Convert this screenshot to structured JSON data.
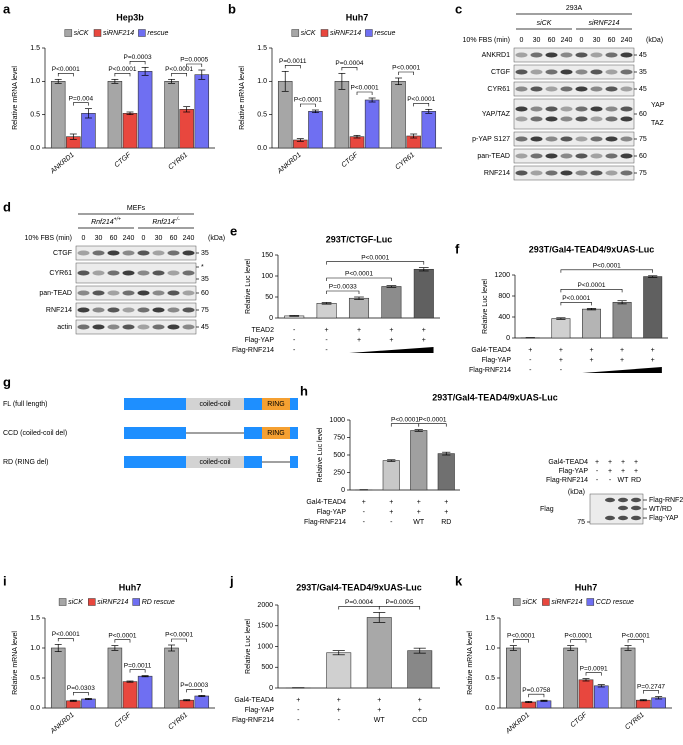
{
  "chart_data": [
    {
      "type": "grouped_bar",
      "panel": "a",
      "title": "Hep3b",
      "y_label": "Relative mRNA level",
      "categories": [
        "ANKRD1",
        "CTGF",
        "CYR61"
      ],
      "series": [
        {
          "name": "siCK",
          "color": "#a6a6a6",
          "values": [
            1,
            1,
            1
          ],
          "errors": [
            0.03,
            0.03,
            0.03
          ]
        },
        {
          "name": "siRNF214",
          "color": "#e8473e",
          "values": [
            0.17,
            0.52,
            0.58
          ],
          "errors": [
            0.04,
            0.02,
            0.04
          ]
        },
        {
          "name": "rescue",
          "color": "#6f6ff2",
          "values": [
            0.52,
            1.15,
            1.1
          ],
          "errors": [
            0.07,
            0.06,
            0.07
          ]
        }
      ],
      "ylim": [
        0,
        1.5
      ],
      "yticks": [
        {
          "value": 0,
          "label": "0.0"
        },
        0.5,
        {
          "value": 1,
          "label": "1.0"
        },
        1.5
      ],
      "annotations": [
        {
          "label": "P=0.004",
          "category": 0,
          "pair": [
            1,
            2
          ]
        },
        {
          "label": "P<0.0001",
          "category": 0,
          "pair": [
            0,
            1
          ]
        },
        {
          "label": "P<0.0001",
          "category": 1,
          "pair": [
            0,
            1
          ]
        },
        {
          "label": "P=0.0003",
          "category": 1,
          "pair": [
            1,
            2
          ]
        },
        {
          "label": "P<0.0001",
          "category": 2,
          "pair": [
            0,
            1
          ]
        },
        {
          "label": "P=0.0005",
          "category": 2,
          "pair": [
            1,
            2
          ]
        }
      ]
    },
    {
      "type": "grouped_bar",
      "panel": "b",
      "title": "Huh7",
      "y_label": "Relative mRNA level",
      "categories": [
        "ANKRD1",
        "CTGF",
        "CYR61"
      ],
      "series": [
        {
          "name": "siCK",
          "color": "#a6a6a6",
          "values": [
            1,
            1,
            1
          ],
          "errors": [
            0.15,
            0.12,
            0.05
          ]
        },
        {
          "name": "siRNF214",
          "color": "#e8473e",
          "values": [
            0.12,
            0.17,
            0.18
          ],
          "errors": [
            0.02,
            0.02,
            0.03
          ]
        },
        {
          "name": "rescue",
          "color": "#6f6ff2",
          "values": [
            0.55,
            0.72,
            0.55
          ],
          "errors": [
            0.02,
            0.03,
            0.03
          ]
        }
      ],
      "ylim": [
        0,
        1.5
      ],
      "yticks": [
        {
          "value": 0,
          "label": "0.0"
        },
        0.5,
        {
          "value": 1,
          "label": "1.0"
        },
        1.5
      ],
      "annotations": [
        {
          "label": "P<0.0001",
          "category": 0,
          "pair": [
            1,
            2
          ]
        },
        {
          "label": "P=0.0011",
          "category": 0,
          "pair": [
            0,
            1
          ]
        },
        {
          "label": "P<0.0001",
          "category": 1,
          "pair": [
            1,
            2
          ]
        },
        {
          "label": "P=0.0004",
          "category": 1,
          "pair": [
            0,
            1
          ]
        },
        {
          "label": "P<0.0001",
          "category": 2,
          "pair": [
            1,
            2
          ]
        },
        {
          "label": "P<0.0001",
          "category": 2,
          "pair": [
            0,
            1
          ]
        }
      ]
    },
    {
      "type": "bar",
      "panel": "e",
      "title": "293T/CTGF-Luc",
      "y_label": "Relative Luc level",
      "values": [
        5,
        35,
        47,
        75,
        116
      ],
      "errors": [
        1,
        2,
        3,
        2,
        4
      ],
      "colors": [
        "#e6e6e6",
        "#d0d0d0",
        "#b4b4b4",
        "#8c8c8c",
        "#606060"
      ],
      "ylim": [
        0,
        150
      ],
      "yticks": [
        0,
        50,
        100,
        150
      ],
      "treatments": [
        {
          "label": "TEAD2",
          "marks": [
            "-",
            "+",
            "+",
            "+",
            "+"
          ]
        },
        {
          "label": "Flag-YAP",
          "marks": [
            "-",
            "-",
            "+",
            "+",
            "+"
          ]
        },
        {
          "label": "Flag-RNF214",
          "marks": [
            "-",
            "-",
            null,
            null,
            null
          ]
        }
      ],
      "annotations": [
        {
          "label": "P=0.0033",
          "pair": [
            1,
            2
          ]
        },
        {
          "label": "P<0.0001",
          "pair": [
            1,
            3
          ]
        },
        {
          "label": "P<0.0001",
          "pair": [
            1,
            4
          ]
        }
      ]
    },
    {
      "type": "bar",
      "panel": "f",
      "title": "293T/Gal4-TEAD4/9xUAS-Luc",
      "y_label": "Relative Luc level",
      "values": [
        5,
        370,
        550,
        680,
        1170
      ],
      "errors": [
        3,
        15,
        15,
        30,
        15
      ],
      "colors": [
        "#e6e6e6",
        "#d0d0d0",
        "#b4b4b4",
        "#8c8c8c",
        "#606060"
      ],
      "ylim": [
        0,
        1200
      ],
      "yticks": [
        0,
        400,
        800,
        1200
      ],
      "treatments": [
        {
          "label": "Gal4-TEAD4",
          "marks": [
            "+",
            "+",
            "+",
            "+",
            "+"
          ]
        },
        {
          "label": "Flag-YAP",
          "marks": [
            "-",
            "+",
            "+",
            "+",
            "+"
          ]
        },
        {
          "label": "Flag-RNF214",
          "marks": [
            "-",
            "-",
            null,
            null,
            null
          ]
        }
      ],
      "annotations": [
        {
          "label": "P<0.0001",
          "pair": [
            1,
            2
          ]
        },
        {
          "label": "P<0.0001",
          "pair": [
            1,
            3
          ]
        },
        {
          "label": "P<0.0001",
          "pair": [
            1,
            4
          ]
        }
      ]
    },
    {
      "type": "bar",
      "panel": "h",
      "title": "293T/Gal4-TEAD4/9xUAS-Luc",
      "y_label": "Relative Luc level",
      "values": [
        3,
        420,
        850,
        520
      ],
      "errors": [
        2,
        12,
        12,
        20
      ],
      "colors": [
        "#ffffff",
        "#c8c8c8",
        "#a0a0a0",
        "#707070"
      ],
      "ylim": [
        0,
        1000
      ],
      "yticks": [
        0,
        250,
        500,
        750,
        1000
      ],
      "treatments": [
        {
          "label": "Gal4-TEAD4",
          "marks": [
            "+",
            "+",
            "+",
            "+"
          ]
        },
        {
          "label": "Flag-YAP",
          "marks": [
            "-",
            "+",
            "+",
            "+"
          ]
        },
        {
          "label": "Flag-RNF214",
          "marks": [
            "-",
            "-",
            "WT",
            "RD"
          ]
        }
      ],
      "annotations": [
        {
          "label": "P<0.0001",
          "pair": [
            1,
            2
          ]
        },
        {
          "label": "P<0.0001",
          "pair": [
            2,
            3
          ]
        }
      ]
    },
    {
      "type": "grouped_bar",
      "panel": "i",
      "title": "Huh7",
      "y_label": "Relative mRNA level",
      "categories": [
        "ANKRD1",
        "CTGF",
        "CYR61"
      ],
      "series": [
        {
          "name": "siCK",
          "color": "#a6a6a6",
          "values": [
            1,
            1,
            1
          ],
          "errors": [
            0.06,
            0.04,
            0.05
          ]
        },
        {
          "name": "siRNF214",
          "color": "#e8473e",
          "values": [
            0.12,
            0.44,
            0.13
          ],
          "errors": [
            0.01,
            0.01,
            0.01
          ]
        },
        {
          "name": "RD rescue",
          "color": "#6f6ff2",
          "values": [
            0.15,
            0.53,
            0.2
          ],
          "errors": [
            0.01,
            0.01,
            0.01
          ]
        }
      ],
      "ylim": [
        0,
        1.5
      ],
      "yticks": [
        {
          "value": 0,
          "label": "0.0"
        },
        0.5,
        {
          "value": 1,
          "label": "1.0"
        },
        1.5
      ],
      "annotations": [
        {
          "label": "P=0.0303",
          "category": 0,
          "pair": [
            1,
            2
          ]
        },
        {
          "label": "P<0.0001",
          "category": 0,
          "pair": [
            0,
            1
          ]
        },
        {
          "label": "P=0.0011",
          "category": 1,
          "pair": [
            1,
            2
          ]
        },
        {
          "label": "P<0.0001",
          "category": 1,
          "pair": [
            0,
            1
          ]
        },
        {
          "label": "P=0.0003",
          "category": 2,
          "pair": [
            1,
            2
          ]
        },
        {
          "label": "P<0.0001",
          "category": 2,
          "pair": [
            0,
            1
          ]
        }
      ]
    },
    {
      "type": "bar",
      "panel": "j",
      "title": "293T/Gal4-TEAD4/9xUAS-Luc",
      "y_label": "Relative Luc level",
      "values": [
        5,
        850,
        1700,
        900
      ],
      "errors": [
        3,
        50,
        120,
        60
      ],
      "colors": [
        "#ffffff",
        "#d0d0d0",
        "#a8a8a8",
        "#888888"
      ],
      "ylim": [
        0,
        2000
      ],
      "yticks": [
        0,
        500,
        1000,
        1500,
        2000
      ],
      "treatments": [
        {
          "label": "Gal4-TEAD4",
          "marks": [
            "+",
            "+",
            "+",
            "+"
          ]
        },
        {
          "label": "Flag-YAP",
          "marks": [
            "-",
            "+",
            "+",
            "+"
          ]
        },
        {
          "label": "Flag-RNF214",
          "marks": [
            "-",
            "-",
            "WT",
            "CCD"
          ]
        }
      ],
      "annotations": [
        {
          "label": "P=0.0004",
          "pair": [
            1,
            2
          ]
        },
        {
          "label": "P=0.0005",
          "pair": [
            2,
            3
          ]
        }
      ]
    },
    {
      "type": "grouped_bar",
      "panel": "k",
      "title": "Huh7",
      "y_label": "Relative mRNA level",
      "categories": [
        "ANKRD1",
        "CTGF",
        "CYR61"
      ],
      "series": [
        {
          "name": "siCK",
          "color": "#a6a6a6",
          "values": [
            1,
            1,
            1
          ],
          "errors": [
            0.04,
            0.04,
            0.04
          ]
        },
        {
          "name": "siRNF214",
          "color": "#e8473e",
          "values": [
            0.1,
            0.47,
            0.13
          ],
          "errors": [
            0.01,
            0.02,
            0.01
          ]
        },
        {
          "name": "CCD rescue",
          "color": "#6f6ff2",
          "values": [
            0.12,
            0.37,
            0.17
          ],
          "errors": [
            0.01,
            0.02,
            0.02
          ]
        }
      ],
      "ylim": [
        0,
        1.5
      ],
      "yticks": [
        {
          "value": 0,
          "label": "0.0"
        },
        0.5,
        {
          "value": 1,
          "label": "1.0"
        },
        1.5
      ],
      "annotations": [
        {
          "label": "P=0.0758",
          "category": 0,
          "pair": [
            1,
            2
          ]
        },
        {
          "label": "P<0.0001",
          "category": 0,
          "pair": [
            0,
            1
          ]
        },
        {
          "label": "P=0.0091",
          "category": 1,
          "pair": [
            1,
            2
          ]
        },
        {
          "label": "P<0.0001",
          "category": 1,
          "pair": [
            0,
            1
          ]
        },
        {
          "label": "P=0.2747",
          "category": 2,
          "pair": [
            1,
            2
          ]
        },
        {
          "label": "P<0.0001",
          "category": 2,
          "pair": [
            0,
            1
          ]
        }
      ]
    }
  ],
  "blots": [
    {
      "panel": "c",
      "title": "293A",
      "groups": [
        {
          "label": "siCK"
        },
        {
          "label": "siRNF214"
        }
      ],
      "lane_header": "10% FBS (min)",
      "lanes": [
        "0",
        "30",
        "60",
        "240",
        "0",
        "30",
        "60",
        "240"
      ],
      "unit": "(kDa)",
      "rows": [
        {
          "label": "ANKRD1",
          "markers": [
            "45"
          ]
        },
        {
          "label": "CTGF",
          "markers": [
            "35"
          ]
        },
        {
          "label": "CYR61",
          "markers": [
            "45"
          ]
        },
        {
          "label": "YAP/TAZ",
          "markers": [
            "60"
          ],
          "bands": [
            "YAP",
            "TAZ"
          ]
        },
        {
          "label": "p-YAP S127",
          "markers": [
            "75"
          ]
        },
        {
          "label": "pan-TEAD",
          "markers": [
            "60"
          ]
        },
        {
          "label": "RNF214",
          "markers": [
            "75"
          ]
        }
      ]
    },
    {
      "panel": "d",
      "title": "MEFs",
      "groups": [
        {
          "label": "Rnf214",
          "sup": "+/+"
        },
        {
          "label": "Rnf214",
          "sup": "-/-"
        }
      ],
      "lane_header": "10% FBS (min)",
      "lanes": [
        "0",
        "30",
        "60",
        "240",
        "0",
        "30",
        "60",
        "240"
      ],
      "unit": "(kDa)",
      "rows": [
        {
          "label": "CTGF",
          "markers": [
            "35"
          ]
        },
        {
          "label": "CYR61",
          "markers": [
            "*",
            "35"
          ]
        },
        {
          "label": "pan-TEAD",
          "markers": [
            "60"
          ]
        },
        {
          "label": "RNF214",
          "markers": [
            "75"
          ]
        },
        {
          "label": "actin",
          "markers": [
            "45"
          ]
        }
      ]
    }
  ],
  "h_blot": {
    "rows": [
      {
        "label": "Gal4-TEAD4",
        "marks": [
          "+",
          "+",
          "+",
          "+"
        ]
      },
      {
        "label": "Flag-YAP",
        "marks": [
          "-",
          "+",
          "+",
          "+"
        ]
      },
      {
        "label": "Flag-RNF214",
        "marks": [
          "-",
          "-",
          "WT",
          "RD"
        ]
      }
    ],
    "unit": "(kDa)",
    "probe": "Flag",
    "marker": "75",
    "bands": [
      "Flag-RNF214",
      "WT/RD",
      "Flag-YAP"
    ]
  },
  "diagram": {
    "panel": "g",
    "constructs": [
      {
        "label": "FL (full length)",
        "coiled_coil": "coiled-coil",
        "ring": "RING"
      },
      {
        "label": "CCD (coiled-coil del)",
        "coiled_coil": null,
        "ring": "RING"
      },
      {
        "label": "RD (RING del)",
        "coiled_coil": "coiled-coil",
        "ring": null
      }
    ]
  }
}
